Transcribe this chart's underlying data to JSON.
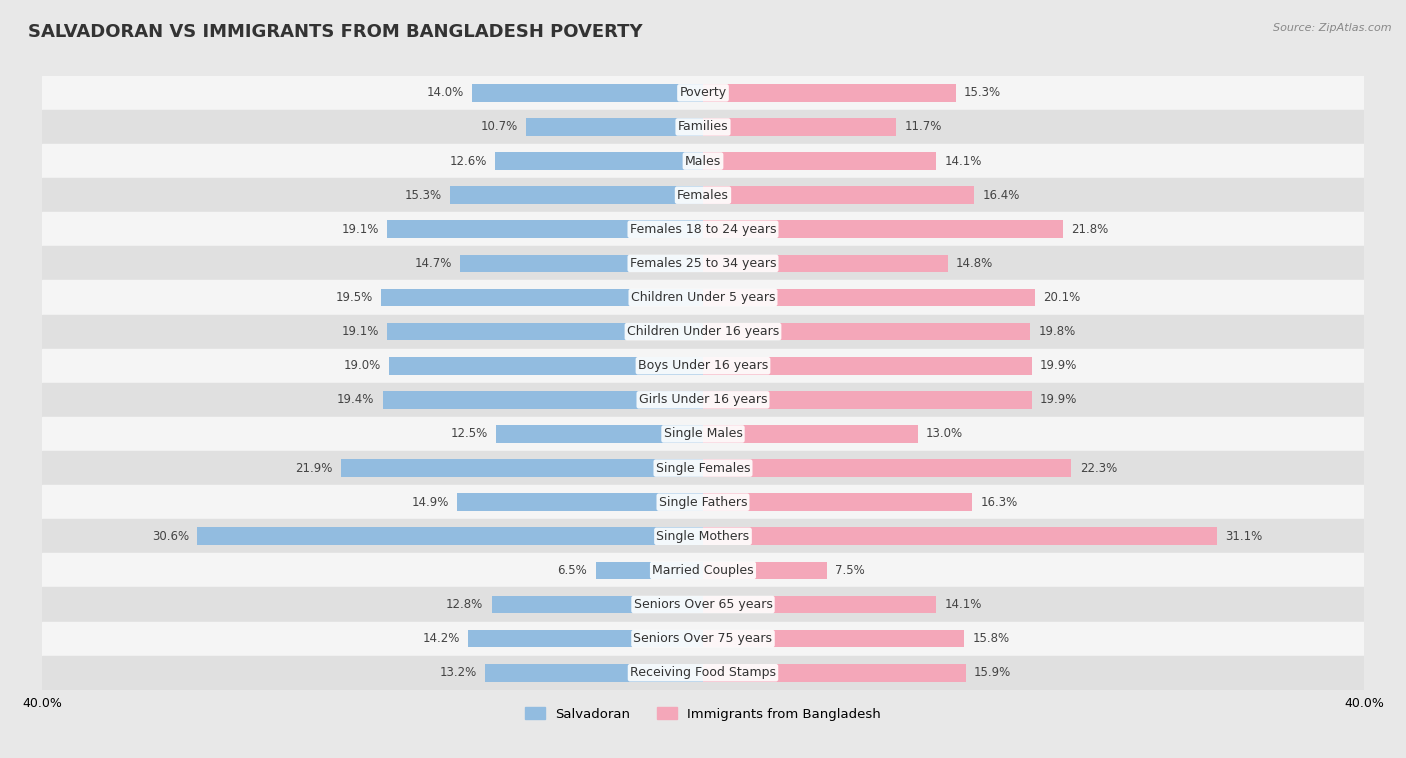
{
  "title": "SALVADORAN VS IMMIGRANTS FROM BANGLADESH POVERTY",
  "source": "Source: ZipAtlas.com",
  "categories": [
    "Poverty",
    "Families",
    "Males",
    "Females",
    "Females 18 to 24 years",
    "Females 25 to 34 years",
    "Children Under 5 years",
    "Children Under 16 years",
    "Boys Under 16 years",
    "Girls Under 16 years",
    "Single Males",
    "Single Females",
    "Single Fathers",
    "Single Mothers",
    "Married Couples",
    "Seniors Over 65 years",
    "Seniors Over 75 years",
    "Receiving Food Stamps"
  ],
  "salvadoran": [
    14.0,
    10.7,
    12.6,
    15.3,
    19.1,
    14.7,
    19.5,
    19.1,
    19.0,
    19.4,
    12.5,
    21.9,
    14.9,
    30.6,
    6.5,
    12.8,
    14.2,
    13.2
  ],
  "bangladesh": [
    15.3,
    11.7,
    14.1,
    16.4,
    21.8,
    14.8,
    20.1,
    19.8,
    19.9,
    19.9,
    13.0,
    22.3,
    16.3,
    31.1,
    7.5,
    14.1,
    15.8,
    15.9
  ],
  "salvadoran_color": "#92bce0",
  "bangladesh_color": "#f4a7b9",
  "background_color": "#e8e8e8",
  "row_color_light": "#f5f5f5",
  "row_color_dark": "#e0e0e0",
  "axis_limit": 40.0,
  "label_fontsize": 9.0,
  "title_fontsize": 13,
  "value_fontsize": 8.5
}
